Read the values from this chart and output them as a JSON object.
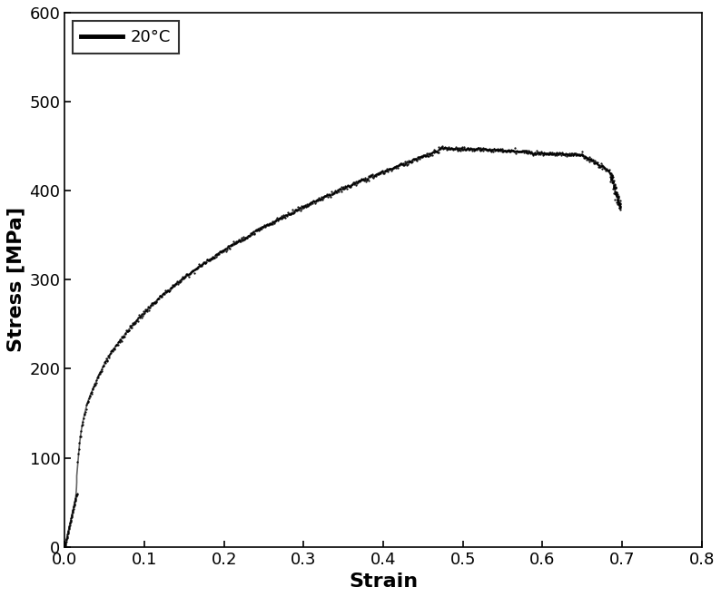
{
  "title": "",
  "xlabel": "Strain",
  "ylabel": "Stress [MPa]",
  "xlim": [
    0,
    0.8
  ],
  "ylim": [
    0,
    600
  ],
  "xticks": [
    0.0,
    0.1,
    0.2,
    0.3,
    0.4,
    0.5,
    0.6,
    0.7,
    0.8
  ],
  "yticks": [
    0,
    100,
    200,
    300,
    400,
    500,
    600
  ],
  "legend_label": "20°C",
  "line_color": "#000000",
  "line_width": 1.5,
  "background_color": "#ffffff",
  "xlabel_fontsize": 16,
  "ylabel_fontsize": 16,
  "tick_fontsize": 13,
  "legend_fontsize": 13,
  "figsize": [
    7.94,
    6.58
  ],
  "dpi": 100
}
